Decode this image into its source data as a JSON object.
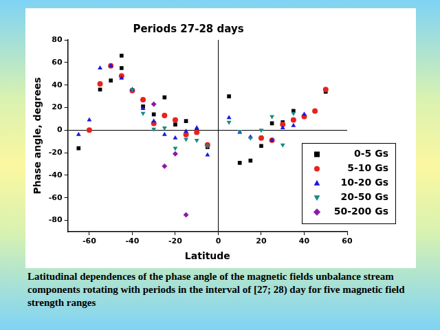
{
  "chart_data": {
    "type": "scatter",
    "title": "Periods 27-28 days",
    "x_label": "Latitude",
    "y_label": "Phase angle, degrees",
    "caption": "Latitudinal dependences of the phase angle of the magnetic fields unbalance stream components rotating with periods in the interval of [27; 28) day for five magnetic field strength ranges",
    "xlim": [
      -70,
      60
    ],
    "xticks": [
      -60,
      -40,
      -20,
      0,
      20,
      40,
      60
    ],
    "ylim": [
      -90,
      80
    ],
    "yticks": [
      -80,
      -60,
      -40,
      -20,
      0,
      20,
      40,
      60,
      80
    ],
    "grid": false,
    "legend": "lower right",
    "series": [
      {
        "name": "0-5 Gs",
        "color": "#000000",
        "marker": "square",
        "x": [
          -65,
          -55,
          -50,
          -45,
          -45,
          -35,
          -30,
          -25,
          -20,
          -15,
          -10,
          -5,
          5,
          10,
          15,
          20,
          25,
          30,
          35,
          50
        ],
        "values": [
          -16,
          36,
          44,
          66,
          55,
          21,
          14,
          29,
          5,
          8,
          -1,
          -15,
          30,
          -29,
          -27,
          -14,
          6,
          7,
          17,
          34
        ]
      },
      {
        "name": "5-10 Gs",
        "color": "#e8221d",
        "marker": "circle",
        "x": [
          -60,
          -55,
          -50,
          -45,
          -40,
          -35,
          -30,
          -25,
          -20,
          -15,
          -10,
          -5,
          20,
          25,
          30,
          35,
          40,
          45,
          50
        ],
        "values": [
          0,
          41,
          57,
          48,
          35,
          27,
          6,
          13,
          9,
          -4,
          -2,
          -13,
          -7,
          -9,
          5,
          9,
          12,
          17,
          36
        ]
      },
      {
        "name": "10-20 Gs",
        "color": "#1a1adc",
        "marker": "triangle",
        "x": [
          -65,
          -60,
          -55,
          -50,
          -45,
          -40,
          -35,
          -30,
          -25,
          -20,
          -15,
          -10,
          -5,
          5,
          10,
          15,
          25,
          30,
          35,
          40
        ],
        "values": [
          -4,
          9,
          55,
          57,
          46,
          36,
          19,
          8,
          -4,
          -7,
          -1,
          2,
          -22,
          11,
          -2,
          -6,
          -9,
          2,
          4,
          14
        ]
      },
      {
        "name": "20-50 Gs",
        "color": "#138a84",
        "marker": "triangle-down",
        "x": [
          -40,
          -35,
          -30,
          -25,
          -20,
          -15,
          -10,
          -5,
          5,
          10,
          15,
          20,
          25,
          30,
          35
        ],
        "values": [
          36,
          15,
          1,
          2,
          -16,
          -8,
          -9,
          -14,
          7,
          -1,
          -7,
          0,
          12,
          -13,
          15
        ]
      },
      {
        "name": "50-200 Gs",
        "color": "#8e1aa8",
        "marker": "diamond",
        "x": [
          -30,
          -25,
          -20,
          -15
        ],
        "values": [
          23,
          -32,
          -21,
          -75
        ]
      }
    ]
  }
}
